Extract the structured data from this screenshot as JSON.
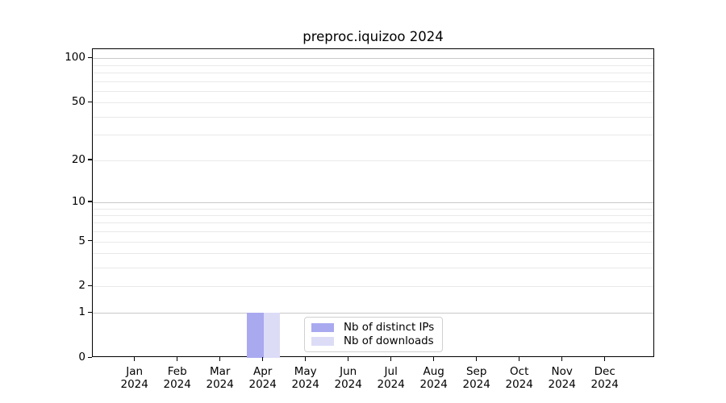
{
  "chart_data": {
    "type": "bar",
    "title": "preproc.iquizoo 2024",
    "categories": [
      "Jan",
      "Feb",
      "Mar",
      "Apr",
      "May",
      "Jun",
      "Jul",
      "Aug",
      "Sep",
      "Oct",
      "Nov",
      "Dec"
    ],
    "category_year": "2024",
    "series": [
      {
        "name": "Nb of distinct IPs",
        "color": "#a9a9f0",
        "values": [
          0,
          0,
          0,
          1,
          0,
          0,
          0,
          0,
          0,
          0,
          0,
          0
        ]
      },
      {
        "name": "Nb of downloads",
        "color": "#dcdcf7",
        "values": [
          0,
          0,
          0,
          1,
          0,
          0,
          0,
          0,
          0,
          0,
          0,
          0
        ]
      }
    ],
    "y_scale": "log1p",
    "y_ticks": [
      0,
      1,
      2,
      5,
      10,
      20,
      50,
      100
    ],
    "y_major_gridlines": [
      1,
      10,
      100
    ],
    "y_minor_gridlines": [
      2,
      3,
      4,
      5,
      6,
      7,
      8,
      9,
      20,
      30,
      40,
      50,
      60,
      70,
      80,
      90
    ],
    "ylim": [
      0,
      117
    ],
    "grid": true,
    "legend_position": "lower-center",
    "colors": {
      "major_grid": "#c9c9c9",
      "minor_grid": "#e9e9e9",
      "spine": "#000000",
      "background": "#ffffff",
      "text": "#000000"
    }
  }
}
